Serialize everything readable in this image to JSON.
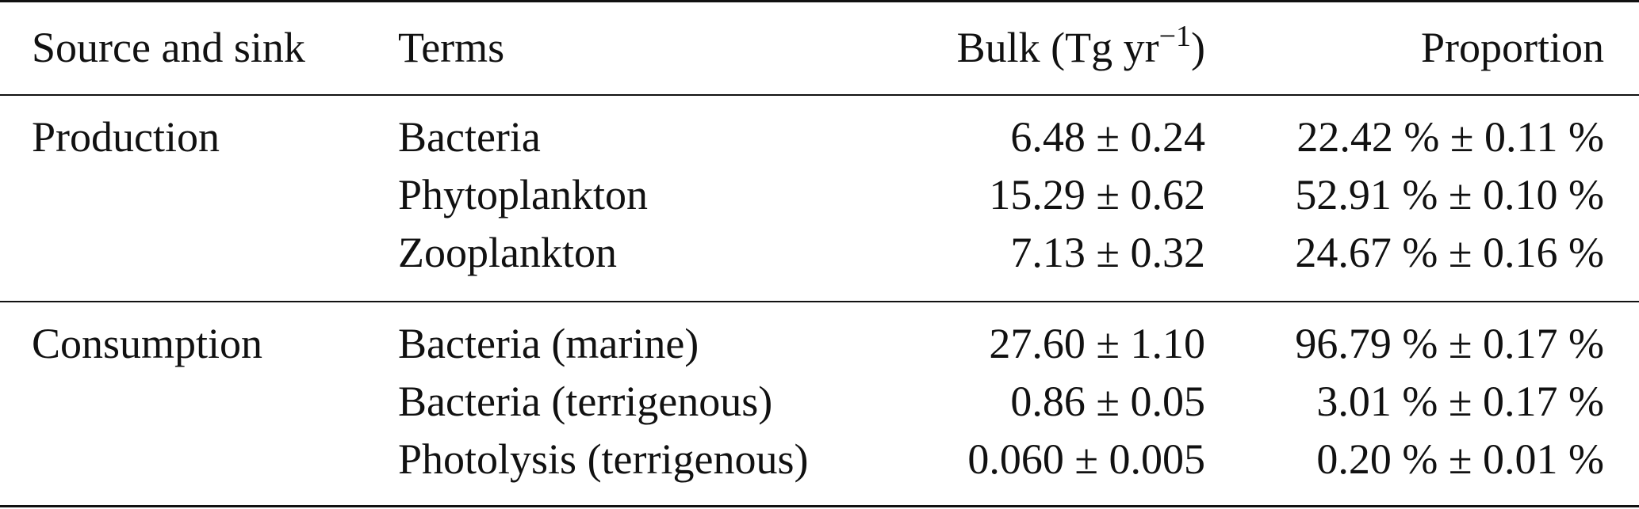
{
  "table": {
    "header": {
      "source": "Source and sink",
      "terms": "Terms",
      "bulk": {
        "main": "Bulk (Tg yr",
        "sup": "−1",
        "tail": ")"
      },
      "proportion": "Proportion"
    },
    "groups": [
      {
        "name": "Production",
        "rows": [
          [
            "Bacteria",
            "6.48 ± 0.24",
            "22.42 % ± 0.11 %"
          ],
          [
            "Phytoplankton",
            "15.29 ± 0.62",
            "52.91 % ± 0.10 %"
          ],
          [
            "Zooplankton",
            "7.13 ± 0.32",
            "24.67 % ± 0.16 %"
          ]
        ]
      },
      {
        "name": "Consumption",
        "rows": [
          [
            "Bacteria (marine)",
            "27.60 ± 1.10",
            "96.79 % ± 0.17 %"
          ],
          [
            "Bacteria (terrigenous)",
            "0.86 ± 0.05",
            "3.01 % ± 0.17 %"
          ],
          [
            "Photolysis (terrigenous)",
            "0.060 ± 0.005",
            "0.20 % ± 0.01 %"
          ]
        ]
      }
    ]
  }
}
